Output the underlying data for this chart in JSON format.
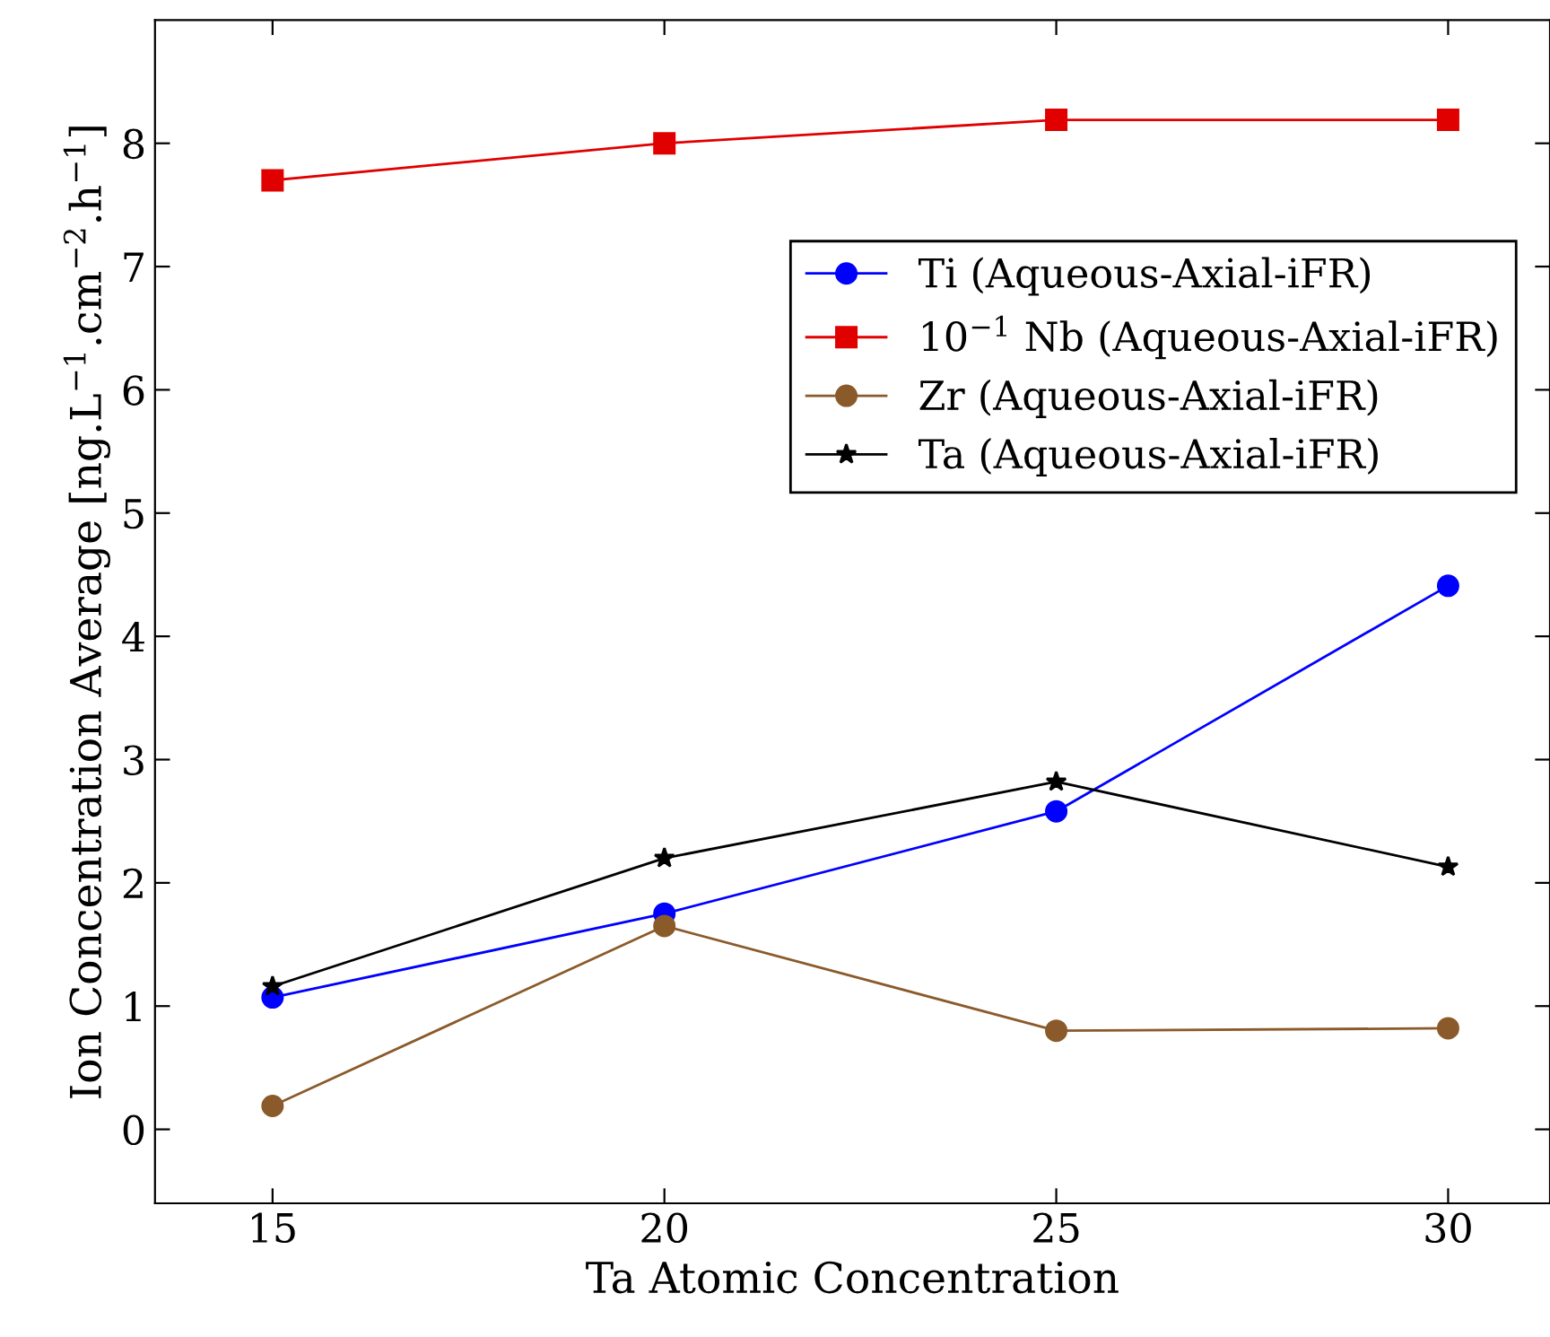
{
  "chart_data": {
    "type": "line",
    "xlabel": "Ta Atomic Concentration",
    "ylabel": "Ion Concentration Average [ng.L$^{−1}$.cm$^{−2}$.h$^{−1}$]",
    "x": [
      15,
      20,
      25,
      30
    ],
    "series": [
      {
        "name": "Ti (Aqueous-Axial-iFR)",
        "color": "#0000ff",
        "marker": "circle",
        "values": [
          1.07,
          1.75,
          2.58,
          4.41
        ]
      },
      {
        "name": "10$^{−1}$ Nb (Aqueous-Axial-iFR)",
        "color": "#e00000",
        "marker": "square",
        "values": [
          7.7,
          8.0,
          8.19,
          8.19
        ]
      },
      {
        "name": "Zr (Aqueous-Axial-iFR)",
        "color": "#8b5a2b",
        "marker": "circle",
        "values": [
          0.19,
          1.65,
          0.8,
          0.82
        ]
      },
      {
        "name": "Ta (Aqueous-Axial-iFR)",
        "color": "#000000",
        "marker": "star",
        "values": [
          1.16,
          2.2,
          2.82,
          2.13
        ]
      }
    ],
    "xlim": [
      13.5,
      31.3
    ],
    "ylim": [
      -0.6,
      9
    ],
    "xticks": [
      15,
      20,
      25,
      30
    ],
    "yticks": [
      0,
      1,
      2,
      3,
      4,
      5,
      6,
      7,
      8
    ],
    "grid": false,
    "legend": "top right",
    "line_style": "solid"
  }
}
